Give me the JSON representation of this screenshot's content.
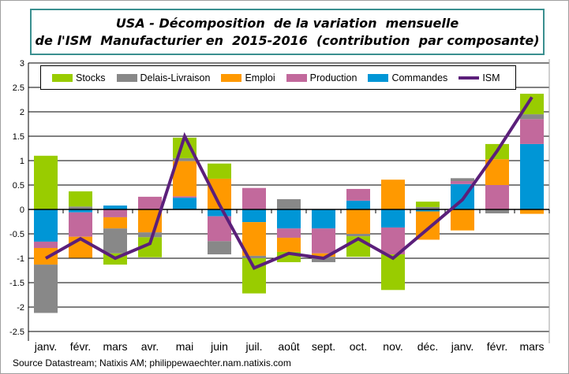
{
  "title_lines": [
    "USA - Décomposition  de la variation  mensuelle",
    "de l'ISM  Manufacturier en  2015-2016  (contribution  par composante)"
  ],
  "source": "Source Datastream; Natixis AM; philippewaechter.nam.natixis.com",
  "chart_data": {
    "type": "bar",
    "stacked": true,
    "title": "USA - Décomposition de la variation mensuelle de l'ISM Manufacturier en 2015-2016 (contribution par composante)",
    "categories": [
      "janv.",
      "févr.",
      "mars",
      "avr.",
      "mai",
      "juin",
      "juil.",
      "août",
      "sept.",
      "oct.",
      "nov.",
      "déc.",
      "janv.",
      "févr.",
      "mars"
    ],
    "ylim": [
      -2.5,
      3
    ],
    "yticks": [
      "3",
      "2.5",
      "2",
      "1.5",
      "1",
      "0.5",
      "0",
      "-0.5",
      "-1",
      "-1.5",
      "-2",
      "-2.5"
    ],
    "grid": true,
    "legend_position": "top",
    "series": [
      {
        "name": "Stocks",
        "color": "#99cc00",
        "values": [
          1.1,
          0.31,
          -0.23,
          -0.41,
          0.42,
          0.31,
          -0.72,
          -0.21,
          0,
          -0.42,
          -0.73,
          0.11,
          0,
          0.31,
          0.42
        ]
      },
      {
        "name": "Delais-Livraison",
        "color": "#888888",
        "values": [
          -0.99,
          0.06,
          -0.51,
          -0.1,
          0.06,
          -0.27,
          -0.05,
          0.21,
          -0.11,
          -0.05,
          0,
          0.05,
          0.06,
          -0.08,
          0.1
        ]
      },
      {
        "name": "Emploi",
        "color": "#ff9900",
        "values": [
          -0.34,
          -0.43,
          -0.23,
          -0.47,
          0.72,
          0.63,
          -0.69,
          -0.29,
          -0.07,
          -0.5,
          0.61,
          -0.58,
          -0.43,
          0.53,
          -0.09
        ]
      },
      {
        "name": "Production",
        "color": "#c2699c",
        "values": [
          -0.13,
          -0.5,
          -0.16,
          0.26,
          0.03,
          -0.51,
          0.44,
          -0.19,
          -0.51,
          0.24,
          -0.55,
          0,
          0.06,
          0.5,
          0.51
        ]
      },
      {
        "name": "Commandes",
        "color": "#0096d6",
        "values": [
          -0.66,
          -0.06,
          0.08,
          0,
          0.24,
          -0.14,
          -0.26,
          -0.39,
          -0.39,
          0.18,
          -0.37,
          -0.04,
          0.52,
          0,
          1.34
        ]
      }
    ],
    "line_series": {
      "name": "ISM",
      "color": "#5b1f7a",
      "values": [
        -1.0,
        -0.6,
        -1.0,
        -0.7,
        1.5,
        0.1,
        -1.2,
        -0.9,
        -1.0,
        -0.6,
        -1.0,
        -0.4,
        0.2,
        1.2,
        2.3
      ]
    }
  }
}
